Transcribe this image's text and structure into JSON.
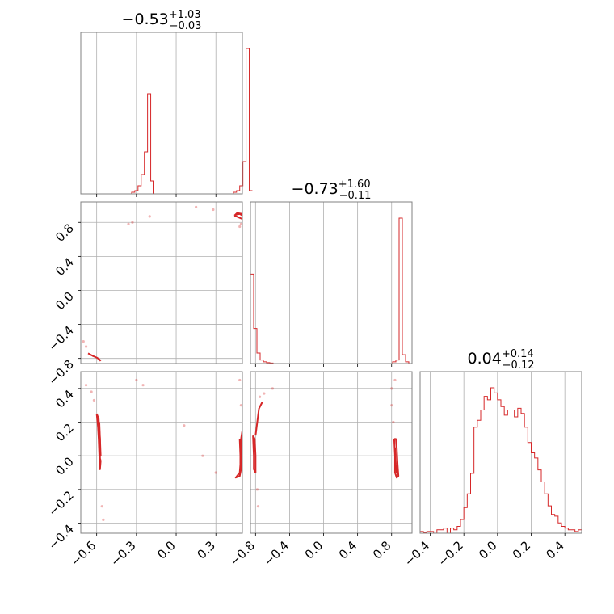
{
  "chart_data": {
    "type": "corner",
    "color": "#d62728",
    "grid": true,
    "parameters": [
      {
        "index": 0,
        "range": [
          -0.72,
          0.5
        ],
        "ticks": [
          -0.6,
          -0.3,
          0.0,
          0.3
        ],
        "tick_labels": [
          "−0.6",
          "−0.3",
          "0.0",
          "0.3"
        ]
      },
      {
        "index": 1,
        "range": [
          -0.86,
          1.04
        ],
        "ticks": [
          -0.8,
          -0.4,
          0.0,
          0.4,
          0.8
        ],
        "tick_labels": [
          "−0.8",
          "−0.4",
          "0.0",
          "0.4",
          "0.8"
        ]
      },
      {
        "index": 2,
        "range": [
          -0.46,
          0.5
        ],
        "ticks": [
          -0.4,
          -0.2,
          0.0,
          0.2,
          0.4
        ],
        "tick_labels": [
          "−0.4",
          "−0.2",
          "0.0",
          "0.2",
          "0.4"
        ]
      }
    ],
    "titles": [
      {
        "median": "−0.53",
        "plus": "+1.03",
        "minus": "−0.03"
      },
      {
        "median": "−0.73",
        "plus": "+1.60",
        "minus": "−0.11"
      },
      {
        "median": "0.04",
        "plus": "+0.14",
        "minus": "−0.12"
      }
    ],
    "histograms": [
      {
        "param": 0,
        "bin_edges_start": -0.72,
        "bin_width": 0.024,
        "counts": [
          0,
          0,
          0,
          0,
          0,
          0,
          0,
          0,
          0,
          0,
          0,
          0,
          0,
          0,
          0,
          0,
          0.01,
          0.02,
          0.05,
          0.12,
          0.26,
          0.62,
          0.08,
          0,
          0,
          0,
          0,
          0,
          0,
          0,
          0,
          0,
          0,
          0,
          0,
          0,
          0,
          0,
          0,
          0,
          0,
          0,
          0,
          0,
          0,
          0,
          0,
          0,
          0.01,
          0.02,
          0.05,
          0.2,
          0.9,
          0.02
        ],
        "max": 0.9
      },
      {
        "param": 1,
        "bin_edges_start": -0.86,
        "bin_width": 0.038,
        "counts": [
          0.51,
          0.2,
          0.06,
          0.02,
          0.01,
          0.005,
          0.003,
          0,
          0,
          0,
          0,
          0,
          0,
          0,
          0,
          0,
          0,
          0,
          0,
          0,
          0,
          0,
          0,
          0,
          0,
          0,
          0,
          0,
          0,
          0,
          0,
          0,
          0,
          0,
          0,
          0,
          0,
          0,
          0,
          0,
          0,
          0,
          0,
          0,
          0.01,
          0.02,
          0.83,
          0.05,
          0.01,
          0
        ],
        "max": 0.83
      },
      {
        "param": 2,
        "bin_edges_start": -0.46,
        "bin_width": 0.02,
        "counts": [
          0.01,
          0.005,
          0.01,
          0.01,
          0,
          0.02,
          0.02,
          0.03,
          0,
          0.03,
          0.02,
          0.04,
          0.08,
          0.15,
          0.23,
          0.35,
          0.62,
          0.66,
          0.72,
          0.8,
          0.78,
          0.85,
          0.82,
          0.78,
          0.74,
          0.69,
          0.72,
          0.72,
          0.68,
          0.73,
          0.7,
          0.62,
          0.53,
          0.47,
          0.44,
          0.37,
          0.3,
          0.23,
          0.16,
          0.11,
          0.1,
          0.06,
          0.04,
          0.03,
          0.02,
          0.02,
          0.01,
          0.02
        ],
        "max": 0.85
      }
    ],
    "contours_2d": [
      {
        "xparam": 0,
        "yparam": 1,
        "level_lines": [
          [
            [
              -0.665,
              -0.74
            ],
            [
              -0.63,
              -0.77
            ],
            [
              -0.6,
              -0.79
            ],
            [
              -0.58,
              -0.81
            ],
            [
              -0.57,
              -0.83
            ]
          ],
          [
            [
              0.44,
              0.88
            ],
            [
              0.46,
              0.91
            ],
            [
              0.5,
              0.9
            ],
            [
              0.5,
              0.84
            ],
            [
              0.47,
              0.86
            ],
            [
              0.44,
              0.88
            ]
          ],
          [
            [
              0.45,
              0.89
            ],
            [
              0.48,
              0.9
            ],
            [
              0.5,
              0.88
            ]
          ]
        ],
        "scatter": [
          [
            -0.7,
            -0.6
          ],
          [
            -0.68,
            -0.66
          ],
          [
            -0.36,
            0.78
          ],
          [
            -0.33,
            0.8
          ],
          [
            -0.2,
            0.87
          ],
          [
            0.15,
            0.98
          ],
          [
            0.28,
            0.95
          ],
          [
            0.48,
            0.75
          ],
          [
            0.49,
            0.78
          ]
        ]
      },
      {
        "xparam": 0,
        "yparam": 2,
        "level_lines": [
          [
            [
              -0.6,
              0.25
            ],
            [
              -0.59,
              0.17
            ],
            [
              -0.585,
              0.1
            ],
            [
              -0.58,
              0.0
            ],
            [
              -0.57,
              -0.03
            ],
            [
              -0.575,
              -0.08
            ],
            [
              -0.575,
              0.0
            ],
            [
              -0.575,
              0.1
            ],
            [
              -0.58,
              0.15
            ],
            [
              -0.585,
              0.22
            ],
            [
              -0.6,
              0.25
            ]
          ],
          [
            [
              -0.58,
              0.2
            ],
            [
              -0.575,
              0.1
            ],
            [
              -0.57,
              0.0
            ]
          ],
          [
            [
              0.5,
              0.15
            ],
            [
              0.49,
              0.1
            ],
            [
              0.485,
              -0.05
            ],
            [
              0.48,
              -0.1
            ],
            [
              0.45,
              -0.13
            ],
            [
              0.48,
              -0.12
            ],
            [
              0.49,
              -0.08
            ],
            [
              0.495,
              0.05
            ],
            [
              0.5,
              0.15
            ]
          ],
          [
            [
              0.48,
              0.1
            ],
            [
              0.485,
              0.0
            ],
            [
              0.485,
              -0.1
            ]
          ]
        ],
        "scatter": [
          [
            -0.68,
            0.42
          ],
          [
            -0.64,
            0.38
          ],
          [
            -0.62,
            0.33
          ],
          [
            -0.56,
            -0.3
          ],
          [
            -0.55,
            -0.38
          ],
          [
            -0.3,
            0.45
          ],
          [
            -0.25,
            0.42
          ],
          [
            0.06,
            0.18
          ],
          [
            0.2,
            0.0
          ],
          [
            0.3,
            -0.1
          ],
          [
            0.48,
            0.45
          ],
          [
            0.49,
            0.3
          ]
        ]
      },
      {
        "xparam": 1,
        "yparam": 2,
        "level_lines": [
          [
            [
              -0.83,
              0.12
            ],
            [
              -0.82,
              0.0
            ],
            [
              -0.82,
              -0.08
            ],
            [
              -0.8,
              -0.1
            ],
            [
              -0.8,
              0.0
            ],
            [
              -0.81,
              0.1
            ],
            [
              -0.83,
              0.12
            ]
          ],
          [
            [
              -0.8,
              0.12
            ],
            [
              -0.78,
              0.2
            ],
            [
              -0.76,
              0.28
            ],
            [
              -0.72,
              0.32
            ]
          ],
          [
            [
              0.83,
              0.1
            ],
            [
              0.84,
              0.0
            ],
            [
              0.84,
              -0.1
            ],
            [
              0.86,
              -0.13
            ],
            [
              0.88,
              -0.12
            ],
            [
              0.87,
              -0.05
            ],
            [
              0.86,
              0.05
            ],
            [
              0.85,
              0.1
            ],
            [
              0.83,
              0.1
            ]
          ],
          [
            [
              0.84,
              0.05
            ],
            [
              0.85,
              -0.05
            ],
            [
              0.86,
              -0.1
            ]
          ]
        ],
        "scatter": [
          [
            -0.78,
            -0.2
          ],
          [
            -0.77,
            -0.3
          ],
          [
            -0.75,
            0.35
          ],
          [
            -0.7,
            0.37
          ],
          [
            -0.6,
            0.4
          ],
          [
            0.8,
            0.4
          ],
          [
            0.8,
            0.3
          ],
          [
            0.82,
            0.2
          ],
          [
            0.84,
            0.45
          ]
        ]
      }
    ]
  }
}
